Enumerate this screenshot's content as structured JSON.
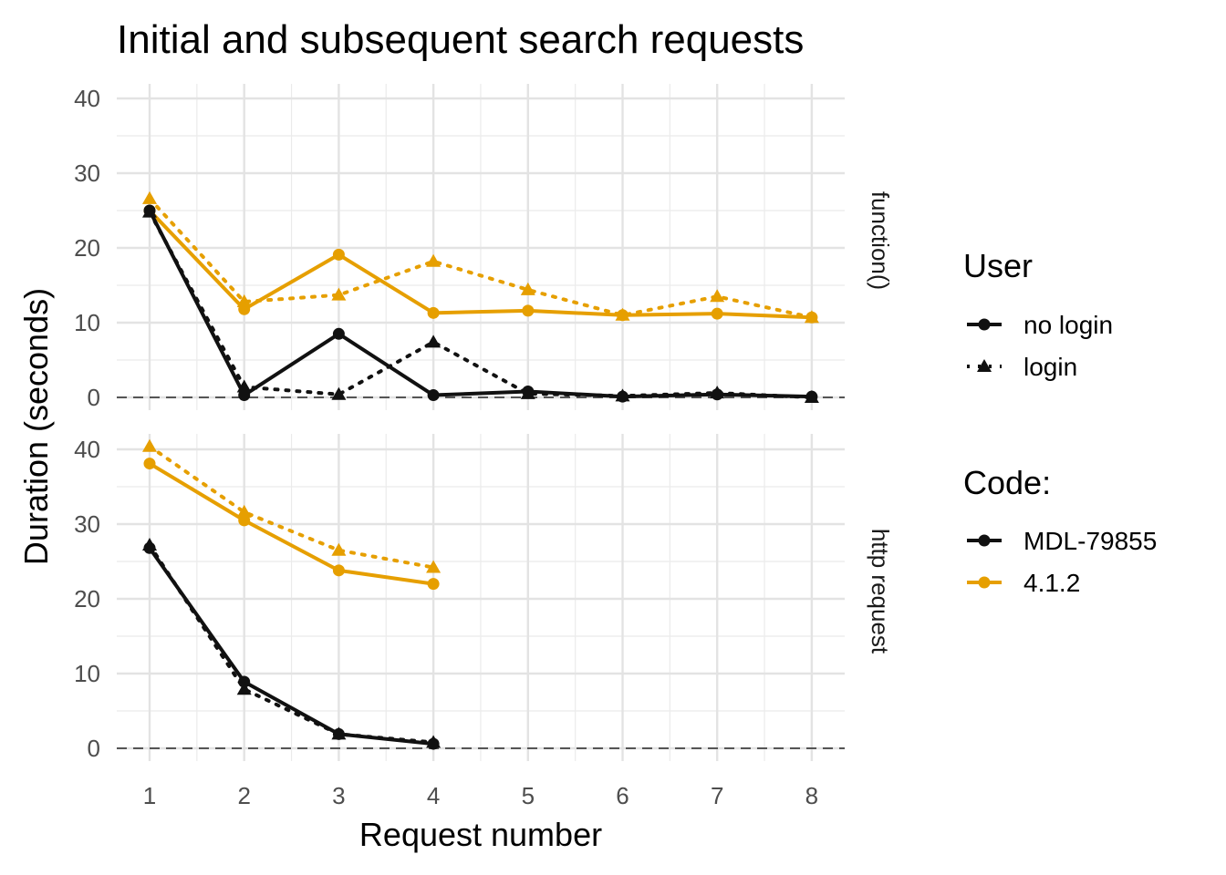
{
  "chart_data": {
    "type": "line",
    "title": "Initial and subsequent search requests",
    "xlabel": "Request number",
    "ylabel": "Duration (seconds)",
    "x_ticks": [
      "1",
      "2",
      "3",
      "4",
      "5",
      "6",
      "7",
      "8"
    ],
    "y_ticks": [
      "0",
      "10",
      "20",
      "30",
      "40"
    ],
    "ylim": [
      0,
      40
    ],
    "grid": true,
    "reference_line": {
      "y": 0,
      "style": "dashed"
    },
    "legend_position": "right",
    "legends": {
      "user": {
        "title": "User",
        "entries": [
          {
            "label": "no login",
            "shape": "circle",
            "linetype": "solid"
          },
          {
            "label": "login",
            "shape": "triangle",
            "linetype": "dotted"
          }
        ]
      },
      "code": {
        "title": "Code:",
        "entries": [
          {
            "label": "MDL-79855",
            "color": "#111111"
          },
          {
            "label": "4.1.2",
            "color": "#E69F00"
          }
        ]
      }
    },
    "panels": [
      {
        "strip": "function()",
        "series": [
          {
            "code": "4.1.2",
            "user": "no login",
            "x": [
              1,
              2,
              3,
              4,
              5,
              6,
              7,
              8
            ],
            "y": [
              25.0,
              11.8,
              19.1,
              11.3,
              11.6,
              11.0,
              11.2,
              10.7
            ]
          },
          {
            "code": "4.1.2",
            "user": "login",
            "x": [
              1,
              2,
              3,
              4,
              5,
              6,
              7,
              8
            ],
            "y": [
              26.6,
              12.8,
              13.7,
              18.2,
              14.4,
              11.0,
              13.5,
              10.7
            ]
          },
          {
            "code": "MDL-79855",
            "user": "no login",
            "x": [
              1,
              2,
              3,
              4,
              5,
              6,
              7,
              8
            ],
            "y": [
              25.0,
              0.3,
              8.5,
              0.3,
              0.8,
              0.1,
              0.4,
              0.1
            ]
          },
          {
            "code": "MDL-79855",
            "user": "login",
            "x": [
              1,
              2,
              3,
              4,
              5,
              6,
              7,
              8
            ],
            "y": [
              24.8,
              1.4,
              0.4,
              7.4,
              0.5,
              0.2,
              0.6,
              0.0
            ]
          }
        ]
      },
      {
        "strip": "http request",
        "series": [
          {
            "code": "4.1.2",
            "user": "no login",
            "x": [
              1,
              2,
              3,
              4
            ],
            "y": [
              38.1,
              30.5,
              23.8,
              22.0
            ]
          },
          {
            "code": "4.1.2",
            "user": "login",
            "x": [
              1,
              2,
              3,
              4
            ],
            "y": [
              40.4,
              31.6,
              26.5,
              24.2
            ]
          },
          {
            "code": "MDL-79855",
            "user": "no login",
            "x": [
              1,
              2,
              3,
              4
            ],
            "y": [
              26.8,
              8.9,
              1.9,
              0.6
            ]
          },
          {
            "code": "MDL-79855",
            "user": "login",
            "x": [
              1,
              2,
              3,
              4
            ],
            "y": [
              27.2,
              7.9,
              1.9,
              0.8
            ]
          }
        ]
      }
    ]
  }
}
